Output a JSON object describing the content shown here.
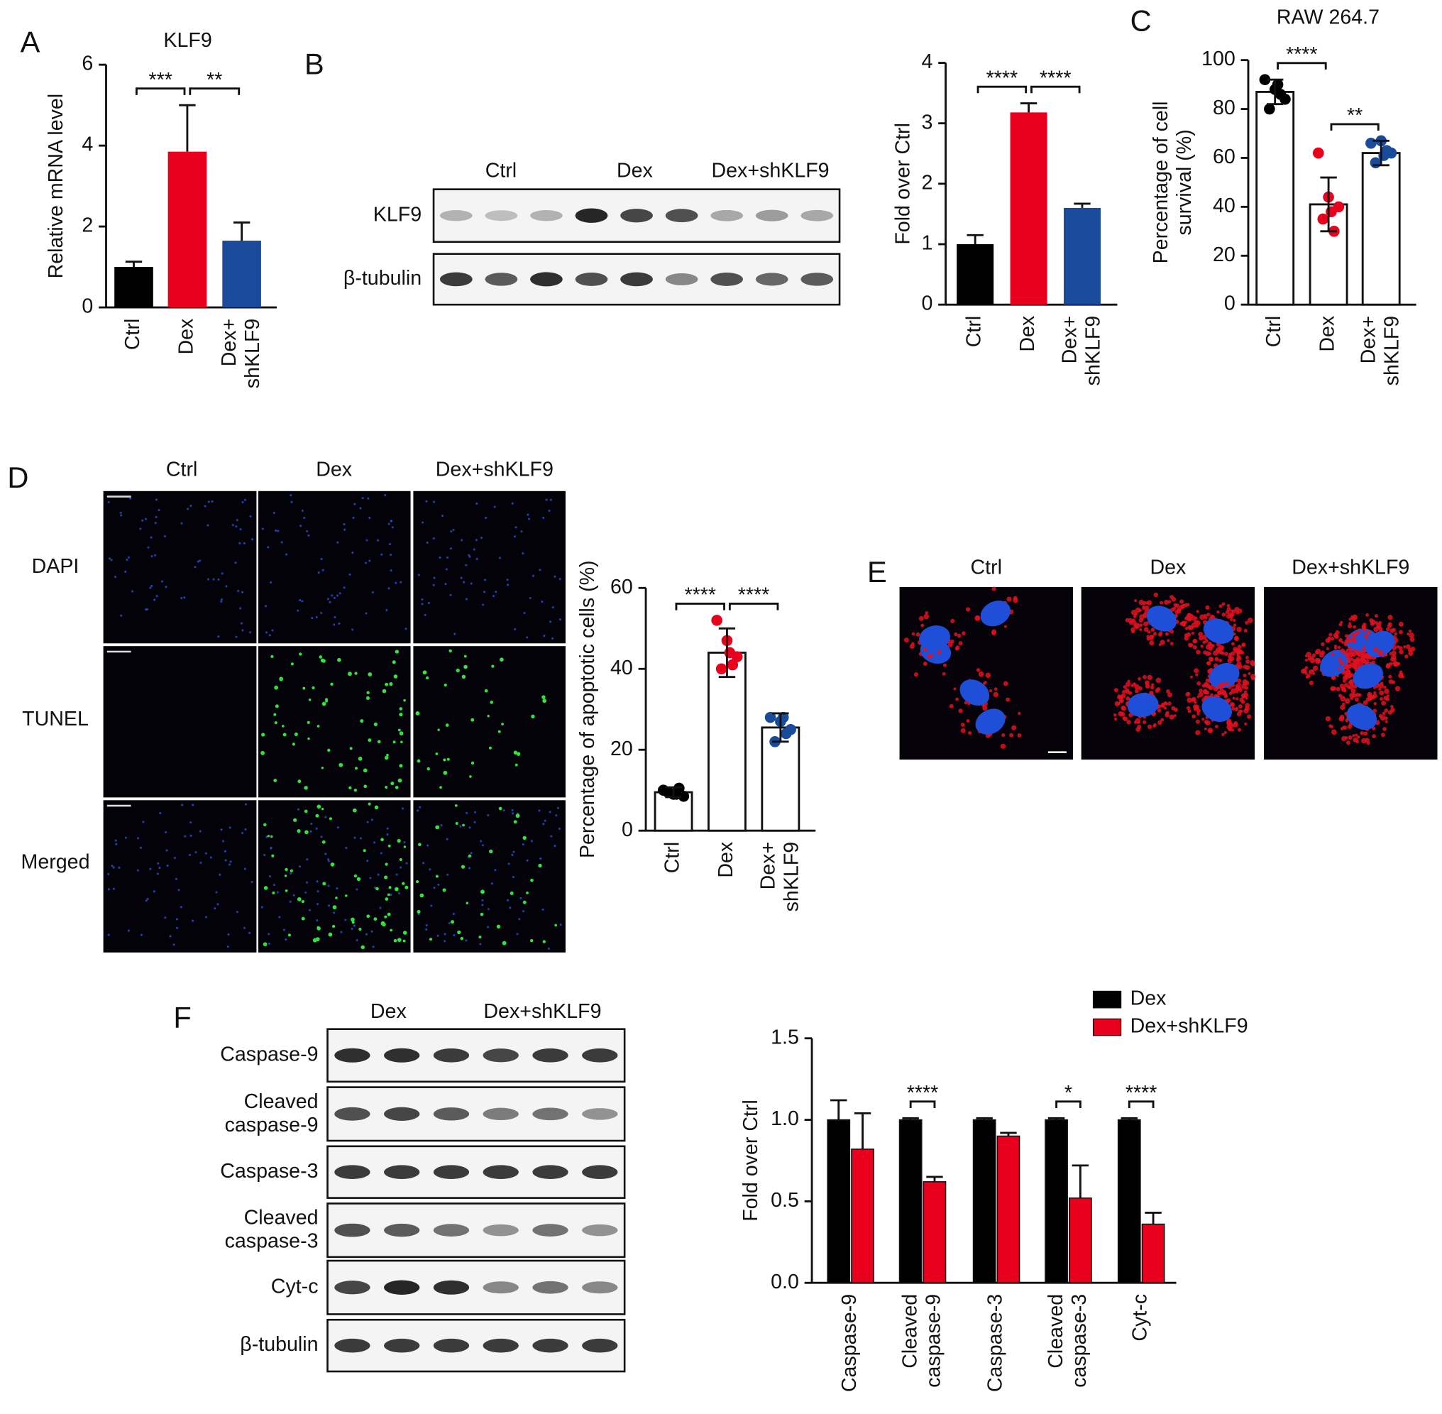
{
  "figure": {
    "panel_labels": [
      "A",
      "B",
      "C",
      "D",
      "E",
      "F"
    ],
    "blot_b": {
      "lanes": [
        "Ctrl",
        "Dex",
        "Dex+shKLF9"
      ],
      "rows": [
        "KLF9",
        "β-tubulin"
      ]
    },
    "microscopy_d": {
      "columns": [
        "Ctrl",
        "Dex",
        "Dex+shKLF9"
      ],
      "rows": [
        "DAPI",
        "TUNEL",
        "Merged"
      ]
    },
    "microscopy_e": {
      "columns": [
        "Ctrl",
        "Dex",
        "Dex+shKLF9"
      ]
    },
    "blot_f": {
      "lanes": [
        "Dex",
        "Dex+shKLF9"
      ],
      "rows": [
        "Caspase-9",
        "Cleaved\ncaspase-9",
        "Caspase-3",
        "Cleaved\ncaspase-3",
        "Cyt-c",
        "β-tubulin"
      ]
    }
  },
  "chart_data": [
    {
      "type": "bar",
      "title": "KLF9",
      "y_label": "Relative mRNA level",
      "categories": [
        "Ctrl",
        "Dex",
        "Dex+\nshKLF9"
      ],
      "values": [
        1.0,
        3.85,
        1.65
      ],
      "errors": [
        0.13,
        1.15,
        0.45
      ],
      "colors": [
        "#000000",
        "#e8001c",
        "#1a4b9b"
      ],
      "ylim": [
        0,
        6
      ],
      "yticks": [
        0,
        2,
        4,
        6
      ],
      "significance": [
        "***",
        "**"
      ]
    },
    {
      "type": "bar",
      "y_label": "Fold over Ctrl",
      "categories": [
        "Ctrl",
        "Dex",
        "Dex+\nshKLF9"
      ],
      "values": [
        1.0,
        3.18,
        1.6
      ],
      "errors": [
        0.15,
        0.15,
        0.07
      ],
      "colors": [
        "#000000",
        "#e8001c",
        "#1a4b9b"
      ],
      "ylim": [
        0,
        4
      ],
      "yticks": [
        0,
        1,
        2,
        3,
        4
      ],
      "significance": [
        "****",
        "****"
      ]
    },
    {
      "type": "bar_scatter",
      "title": "RAW 264.7",
      "y_label": "Percentage of cell\nsurvival (%)",
      "categories": [
        "Ctrl",
        "Dex",
        "Dex+\nshKLF9"
      ],
      "values": [
        87,
        41,
        62
      ],
      "errors": [
        5,
        11,
        5
      ],
      "points": [
        [
          92,
          88,
          84,
          80,
          86,
          90
        ],
        [
          62,
          44,
          40,
          35,
          30,
          38
        ],
        [
          66,
          67,
          62,
          58,
          63,
          61
        ]
      ],
      "colors": [
        "#000000",
        "#e8001c",
        "#1a4b9b"
      ],
      "ylim": [
        0,
        100
      ],
      "yticks": [
        0,
        20,
        40,
        60,
        80,
        100
      ],
      "significance": [
        "****",
        "**"
      ]
    },
    {
      "type": "bar_scatter",
      "y_label": "Percentage of apoptotic cells (%)",
      "categories": [
        "Ctrl",
        "Dex",
        "Dex+\nshKLF9"
      ],
      "values": [
        9.5,
        44,
        25.5
      ],
      "errors": [
        1.2,
        6,
        3.5
      ],
      "points": [
        [
          10,
          9,
          8.5,
          9.5,
          10.5,
          9
        ],
        [
          52,
          47,
          43,
          40,
          41,
          44
        ],
        [
          28,
          27,
          25,
          22,
          24,
          28
        ]
      ],
      "colors": [
        "#000000",
        "#e8001c",
        "#1a4b9b"
      ],
      "ylim": [
        0,
        60
      ],
      "yticks": [
        0,
        20,
        40,
        60
      ],
      "significance": [
        "****",
        "****"
      ]
    },
    {
      "type": "grouped_bar",
      "y_label": "Fold over Ctrl",
      "categories": [
        "Caspase-9",
        "Cleaved\ncaspase-9",
        "Caspase-3",
        "Cleaved\ncaspase-3",
        "Cyt-c"
      ],
      "series": [
        {
          "name": "Dex",
          "color": "#000000",
          "values": [
            1.0,
            1.0,
            1.0,
            1.0,
            1.0
          ],
          "errors": [
            0.12,
            0.01,
            0.01,
            0.01,
            0.01
          ]
        },
        {
          "name": "Dex+shKLF9",
          "color": "#e8001c",
          "values": [
            0.82,
            0.62,
            0.9,
            0.52,
            0.36
          ],
          "errors": [
            0.22,
            0.03,
            0.02,
            0.2,
            0.07
          ]
        }
      ],
      "ylim": [
        0,
        1.5
      ],
      "yticks": [
        {
          "value": 0,
          "label": "0.0"
        },
        {
          "value": 0.5,
          "label": "0.5"
        },
        {
          "value": 1,
          "label": "1.0"
        },
        {
          "value": 1.5,
          "label": "1.5"
        }
      ],
      "significance": [
        null,
        "****",
        null,
        "*",
        "****"
      ]
    }
  ]
}
